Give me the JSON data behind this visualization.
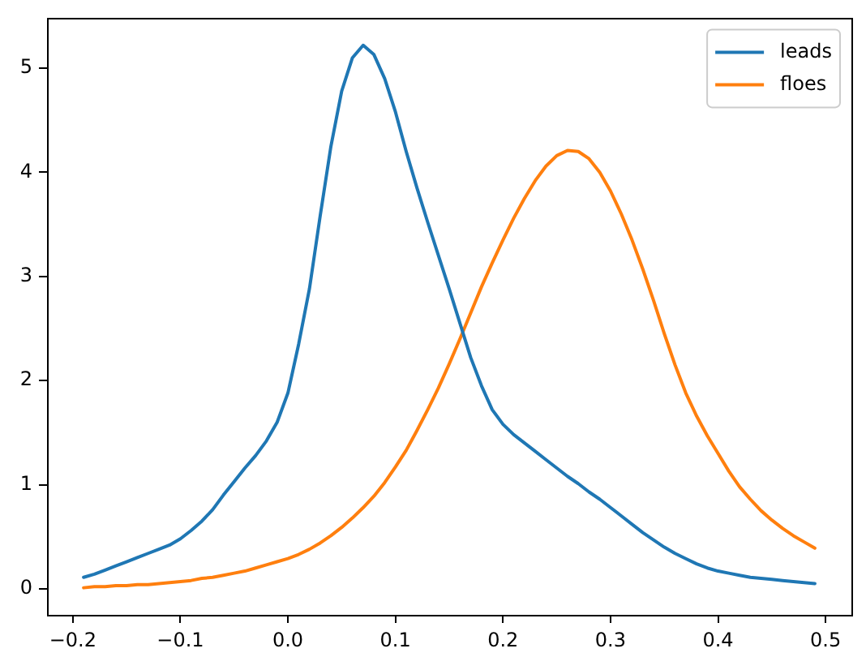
{
  "chart_data": {
    "type": "line",
    "x": [
      -0.19,
      -0.18,
      -0.17,
      -0.16,
      -0.15,
      -0.14,
      -0.13,
      -0.12,
      -0.11,
      -0.1,
      -0.09,
      -0.08,
      -0.07,
      -0.06,
      -0.05,
      -0.04,
      -0.03,
      -0.02,
      -0.01,
      0,
      0.01,
      0.02,
      0.03,
      0.04,
      0.05,
      0.06,
      0.07,
      0.08,
      0.09,
      0.1,
      0.11,
      0.12,
      0.13,
      0.14,
      0.15,
      0.16,
      0.17,
      0.18,
      0.19,
      0.2,
      0.21,
      0.22,
      0.23,
      0.24,
      0.25,
      0.26,
      0.27,
      0.28,
      0.29,
      0.3,
      0.31,
      0.32,
      0.33,
      0.34,
      0.35,
      0.36,
      0.37,
      0.38,
      0.39,
      0.4,
      0.41,
      0.42,
      0.43,
      0.44,
      0.45,
      0.46,
      0.47,
      0.48,
      0.49
    ],
    "series": [
      {
        "name": "leads",
        "color": "#1f77b4",
        "values": [
          0.11,
          0.14,
          0.18,
          0.22,
          0.26,
          0.3,
          0.34,
          0.38,
          0.42,
          0.48,
          0.56,
          0.65,
          0.76,
          0.9,
          1.03,
          1.16,
          1.28,
          1.42,
          1.6,
          1.88,
          2.35,
          2.88,
          3.58,
          4.25,
          4.78,
          5.1,
          5.22,
          5.13,
          4.9,
          4.58,
          4.2,
          3.85,
          3.52,
          3.2,
          2.88,
          2.55,
          2.22,
          1.95,
          1.72,
          1.58,
          1.48,
          1.4,
          1.32,
          1.24,
          1.16,
          1.08,
          1.01,
          0.93,
          0.86,
          0.78,
          0.7,
          0.62,
          0.54,
          0.47,
          0.4,
          0.34,
          0.29,
          0.24,
          0.2,
          0.17,
          0.15,
          0.13,
          0.11,
          0.1,
          0.09,
          0.08,
          0.07,
          0.06,
          0.05
        ]
      },
      {
        "name": "floes",
        "color": "#ff7f0e",
        "values": [
          0.01,
          0.02,
          0.02,
          0.03,
          0.03,
          0.04,
          0.04,
          0.05,
          0.06,
          0.07,
          0.08,
          0.1,
          0.11,
          0.13,
          0.15,
          0.17,
          0.2,
          0.23,
          0.26,
          0.29,
          0.33,
          0.38,
          0.44,
          0.51,
          0.59,
          0.68,
          0.78,
          0.89,
          1.02,
          1.17,
          1.33,
          1.52,
          1.72,
          1.93,
          2.16,
          2.4,
          2.65,
          2.9,
          3.13,
          3.35,
          3.56,
          3.75,
          3.92,
          4.06,
          4.16,
          4.21,
          4.2,
          4.13,
          4,
          3.82,
          3.6,
          3.35,
          3.07,
          2.77,
          2.45,
          2.15,
          1.88,
          1.66,
          1.47,
          1.3,
          1.13,
          0.98,
          0.86,
          0.75,
          0.66,
          0.58,
          0.51,
          0.45,
          0.39
        ]
      }
    ],
    "xlim": [
      -0.224,
      0.524
    ],
    "ylim": [
      -0.25,
      5.48
    ],
    "xticks": [
      {
        "value": -0.2,
        "label": "−0.2"
      },
      {
        "value": -0.1,
        "label": "−0.1"
      },
      {
        "value": 0,
        "label": "0.0"
      },
      0.1,
      0.2,
      0.3,
      0.4,
      0.5
    ],
    "yticks": [
      0,
      1,
      2,
      3,
      4,
      5
    ],
    "legend": "top right"
  }
}
